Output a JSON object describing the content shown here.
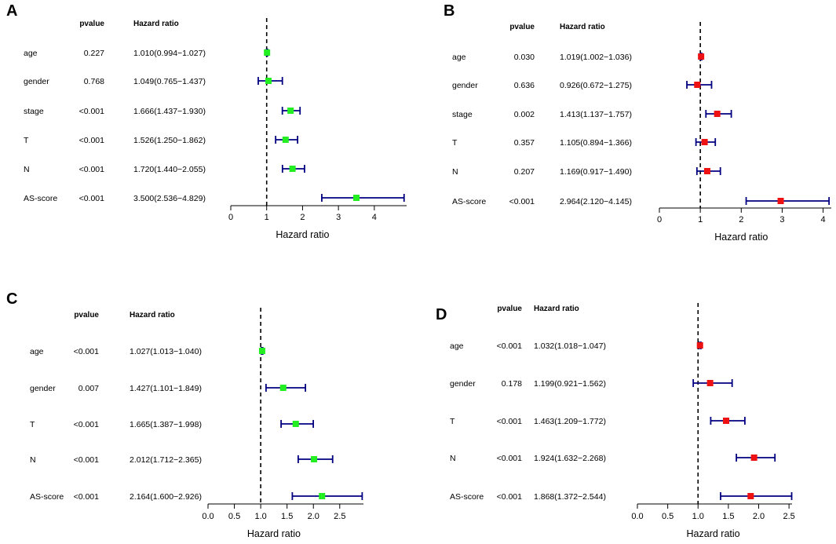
{
  "column_headers": {
    "pvalue": "pvalue",
    "hazard_ratio": "Hazard ratio"
  },
  "x_axis_label": "Hazard ratio",
  "colors": {
    "green": "#22ee22",
    "red": "#ee1111",
    "ci": "#000080"
  },
  "chart_data": [
    {
      "panel": "A",
      "type": "forest",
      "xlabel": "Hazard ratio",
      "xlim": [
        0,
        4.9
      ],
      "xticks": [
        "0",
        "1",
        "2",
        "3",
        "4"
      ],
      "ref_line": 1,
      "marker_color": "green",
      "rows": [
        {
          "name": "age",
          "pvalue": "0.227",
          "hr_text": "1.010(0.994−1.027)",
          "hr": 1.01,
          "low": 0.994,
          "high": 1.027
        },
        {
          "name": "gender",
          "pvalue": "0.768",
          "hr_text": "1.049(0.765−1.437)",
          "hr": 1.049,
          "low": 0.765,
          "high": 1.437
        },
        {
          "name": "stage",
          "pvalue": "<0.001",
          "hr_text": "1.666(1.437−1.930)",
          "hr": 1.666,
          "low": 1.437,
          "high": 1.93
        },
        {
          "name": "T",
          "pvalue": "<0.001",
          "hr_text": "1.526(1.250−1.862)",
          "hr": 1.526,
          "low": 1.25,
          "high": 1.862
        },
        {
          "name": "N",
          "pvalue": "<0.001",
          "hr_text": "1.720(1.440−2.055)",
          "hr": 1.72,
          "low": 1.44,
          "high": 2.055
        },
        {
          "name": "AS-score",
          "pvalue": "<0.001",
          "hr_text": "3.500(2.536−4.829)",
          "hr": 3.5,
          "low": 2.536,
          "high": 4.829
        }
      ]
    },
    {
      "panel": "B",
      "type": "forest",
      "xlabel": "Hazard ratio",
      "xlim": [
        0,
        4.2
      ],
      "xticks": [
        "0",
        "1",
        "2",
        "3",
        "4"
      ],
      "ref_line": 1,
      "marker_color": "red",
      "rows": [
        {
          "name": "age",
          "pvalue": "0.030",
          "hr_text": "1.019(1.002−1.036)",
          "hr": 1.019,
          "low": 1.002,
          "high": 1.036
        },
        {
          "name": "gender",
          "pvalue": "0.636",
          "hr_text": "0.926(0.672−1.275)",
          "hr": 0.926,
          "low": 0.672,
          "high": 1.275
        },
        {
          "name": "stage",
          "pvalue": "0.002",
          "hr_text": "1.413(1.137−1.757)",
          "hr": 1.413,
          "low": 1.137,
          "high": 1.757
        },
        {
          "name": "T",
          "pvalue": "0.357",
          "hr_text": "1.105(0.894−1.366)",
          "hr": 1.105,
          "low": 0.894,
          "high": 1.366
        },
        {
          "name": "N",
          "pvalue": "0.207",
          "hr_text": "1.169(0.917−1.490)",
          "hr": 1.169,
          "low": 0.917,
          "high": 1.49
        },
        {
          "name": "AS-score",
          "pvalue": "<0.001",
          "hr_text": "2.964(2.120−4.145)",
          "hr": 2.964,
          "low": 2.12,
          "high": 4.145
        }
      ]
    },
    {
      "panel": "C",
      "type": "forest",
      "xlabel": "Hazard ratio",
      "xlim": [
        0,
        2.95
      ],
      "xticks": [
        "0.0",
        "0.5",
        "1.0",
        "1.5",
        "2.0",
        "2.5"
      ],
      "ref_line": 1,
      "marker_color": "green",
      "rows": [
        {
          "name": "age",
          "pvalue": "<0.001",
          "hr_text": "1.027(1.013−1.040)",
          "hr": 1.027,
          "low": 1.013,
          "high": 1.04
        },
        {
          "name": "gender",
          "pvalue": "0.007",
          "hr_text": "1.427(1.101−1.849)",
          "hr": 1.427,
          "low": 1.101,
          "high": 1.849
        },
        {
          "name": "T",
          "pvalue": "<0.001",
          "hr_text": "1.665(1.387−1.998)",
          "hr": 1.665,
          "low": 1.387,
          "high": 1.998
        },
        {
          "name": "N",
          "pvalue": "<0.001",
          "hr_text": "2.012(1.712−2.365)",
          "hr": 2.012,
          "low": 1.712,
          "high": 2.365
        },
        {
          "name": "AS-score",
          "pvalue": "<0.001",
          "hr_text": "2.164(1.600−2.926)",
          "hr": 2.164,
          "low": 1.6,
          "high": 2.926
        }
      ]
    },
    {
      "panel": "D",
      "type": "forest",
      "xlabel": "Hazard ratio",
      "xlim": [
        0,
        2.55
      ],
      "xticks": [
        "0.0",
        "0.5",
        "1.0",
        "1.5",
        "2.0",
        "2.5"
      ],
      "ref_line": 1,
      "marker_color": "red",
      "rows": [
        {
          "name": "age",
          "pvalue": "<0.001",
          "hr_text": "1.032(1.018−1.047)",
          "hr": 1.032,
          "low": 1.018,
          "high": 1.047
        },
        {
          "name": "gender",
          "pvalue": "0.178",
          "hr_text": "1.199(0.921−1.562)",
          "hr": 1.199,
          "low": 0.921,
          "high": 1.562
        },
        {
          "name": "T",
          "pvalue": "<0.001",
          "hr_text": "1.463(1.209−1.772)",
          "hr": 1.463,
          "low": 1.209,
          "high": 1.772
        },
        {
          "name": "N",
          "pvalue": "<0.001",
          "hr_text": "1.924(1.632−2.268)",
          "hr": 1.924,
          "low": 1.632,
          "high": 2.268
        },
        {
          "name": "AS-score",
          "pvalue": "<0.001",
          "hr_text": "1.868(1.372−2.544)",
          "hr": 1.868,
          "low": 1.372,
          "high": 2.544
        }
      ]
    }
  ]
}
